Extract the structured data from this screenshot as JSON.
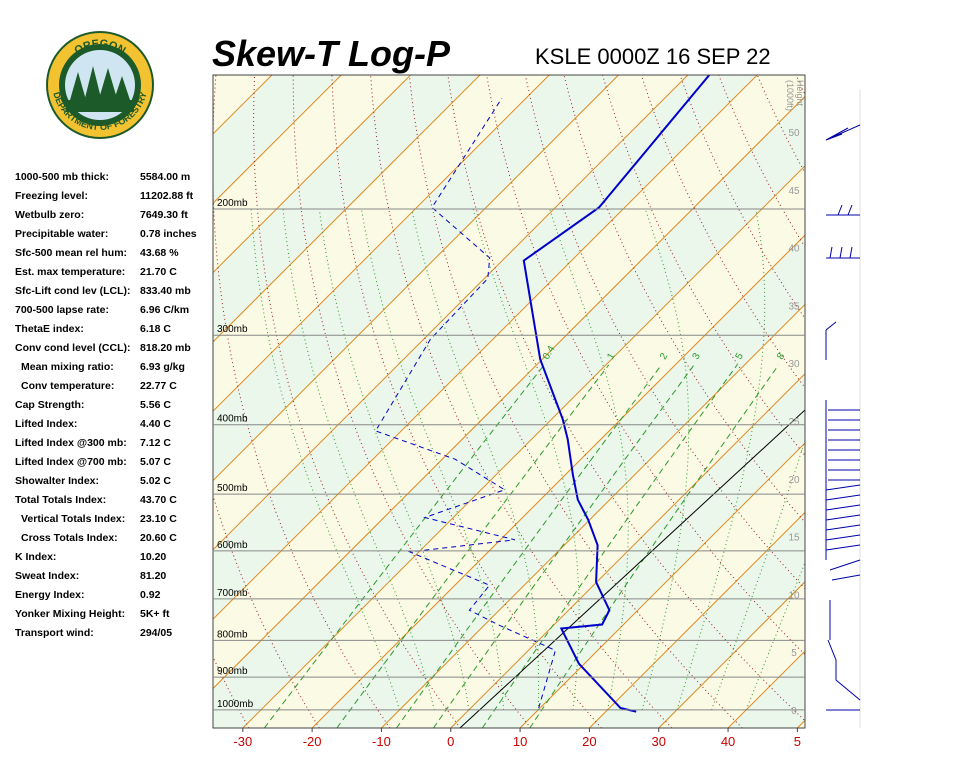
{
  "logo": {
    "top": "OREGON",
    "bottom": "DEPARTMENT OF FORESTRY"
  },
  "header": {
    "title": "Skew-T Log-P",
    "station": "KSLE 0000Z 16 SEP 22"
  },
  "indices": [
    {
      "label": "1000-500 mb thick:",
      "value": "5584.00 m"
    },
    {
      "label": "Freezing level:",
      "value": "11202.88 ft"
    },
    {
      "label": "Wetbulb zero:",
      "value": "7649.30 ft"
    },
    {
      "label": "Precipitable water:",
      "value": "0.78 inches"
    },
    {
      "label": "Sfc-500 mean rel hum:",
      "value": "43.68 %"
    },
    {
      "label": "Est. max temperature:",
      "value": "21.70 C"
    },
    {
      "label": "Sfc-Lift cond lev (LCL):",
      "value": "833.40 mb"
    },
    {
      "label": "700-500 lapse rate:",
      "value": "6.96 C/km"
    },
    {
      "label": "ThetaE index:",
      "value": "6.18 C"
    },
    {
      "label": "Conv cond level (CCL):",
      "value": "818.20 mb"
    },
    {
      "label": "Mean mixing ratio:",
      "value": "6.93 g/kg"
    },
    {
      "label": "Conv temperature:",
      "value": "22.77 C"
    },
    {
      "label": "Cap Strength:",
      "value": "5.56 C"
    },
    {
      "label": "Lifted Index:",
      "value": "4.40 C"
    },
    {
      "label": "Lifted Index @300 mb:",
      "value": "7.12 C"
    },
    {
      "label": "Lifted Index @700 mb:",
      "value": "5.07 C"
    },
    {
      "label": "Showalter Index:",
      "value": "5.02 C"
    },
    {
      "label": "Total Totals Index:",
      "value": "43.70 C"
    },
    {
      "label": "Vertical Totals Index:",
      "value": "23.10 C"
    },
    {
      "label": "Cross Totals Index:",
      "value": "20.60 C"
    },
    {
      "label": "K Index:",
      "value": "10.20"
    },
    {
      "label": "Sweat Index:",
      "value": "81.20"
    },
    {
      "label": "Energy Index:",
      "value": "0.92"
    },
    {
      "label": "Yonker Mixing Height:",
      "value": "5K+ ft"
    },
    {
      "label": "Transport wind:",
      "value": "294/05"
    }
  ],
  "chart_data": {
    "type": "skewt",
    "plim": [
      1060,
      130
    ],
    "pticks": [
      {
        "value": 200,
        "label": "200mb"
      },
      {
        "value": 300,
        "label": "300mb"
      },
      {
        "value": 400,
        "label": "400mb"
      },
      {
        "value": 500,
        "label": "500mb"
      },
      {
        "value": 600,
        "label": "600mb"
      },
      {
        "value": 700,
        "label": "700mb"
      },
      {
        "value": 800,
        "label": "800mb"
      },
      {
        "value": 900,
        "label": "900mb"
      },
      {
        "value": 1000,
        "label": "1000mb"
      }
    ],
    "tlim": [
      -34.3,
      51.1
    ],
    "tticks": [
      -30,
      -20,
      -10,
      0,
      10,
      20,
      30,
      40,
      {
        "value": 50,
        "label": "5"
      }
    ],
    "height_label": [
      "Height",
      "(1000ft)"
    ],
    "height_lim": [
      0,
      50
    ],
    "height_ticks": [
      0,
      5,
      10,
      15,
      20,
      25,
      30,
      35,
      40,
      45,
      50
    ],
    "mixing_ratios": [
      0.4,
      1,
      2,
      3,
      5,
      8
    ],
    "temperature": {
      "color": "#0000cc",
      "pressure": [
        1006,
        994,
        862,
        770,
        760,
        726,
        663,
        589,
        543,
        509,
        469,
        419,
        393,
        324,
        236,
        199,
        130
      ],
      "values": [
        24.4,
        21.6,
        9.2,
        1.6,
        6.9,
        5.9,
        -0.1,
        -5.2,
        -10.2,
        -14.6,
        -19.0,
        -24.8,
        -28.4,
        -40.3,
        -56.9,
        -53.7,
        -56.9
      ]
    },
    "dewpoint": {
      "color": "#0000cc",
      "pressure": [
        994,
        826,
        762,
        726,
        670,
        602,
        579,
        539,
        493,
        447,
        408,
        304,
        250,
        234,
        199,
        140
      ],
      "values": [
        9.8,
        3.9,
        -7.8,
        -14.3,
        -15.0,
        -31.3,
        -17.9,
        -34.1,
        -26.6,
        -38.1,
        -53.7,
        -59.0,
        -59.5,
        -62.2,
        -77.8,
        -83.5
      ]
    }
  }
}
